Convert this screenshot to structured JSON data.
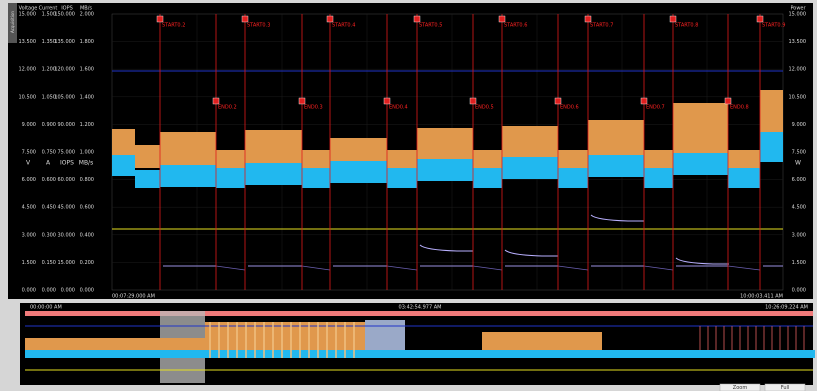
{
  "window_tab": "Acquisition",
  "header": {
    "columns": [
      "Voltage",
      "Current",
      "IOPS",
      "MB/s"
    ],
    "right": "Power"
  },
  "left_axis_rows": [
    [
      "15.000",
      "1.500",
      "150.000",
      "2.000"
    ],
    [
      "13.500",
      "1.350",
      "135.000",
      "1.800"
    ],
    [
      "12.000",
      "1.200",
      "120.000",
      "1.600"
    ],
    [
      "10.500",
      "1.050",
      "105.000",
      "1.400"
    ],
    [
      "9.000",
      "0.900",
      "90.000",
      "1.200"
    ],
    [
      "7.500",
      "0.750",
      "75.000",
      "1.000"
    ],
    [
      "6.000",
      "0.600",
      "60.000",
      "0.800"
    ],
    [
      "4.500",
      "0.450",
      "45.000",
      "0.600"
    ],
    [
      "3.000",
      "0.300",
      "30.000",
      "0.400"
    ],
    [
      "1.500",
      "0.150",
      "15.000",
      "0.200"
    ],
    [
      "0.000",
      "0.000",
      "0.000",
      "0.000"
    ]
  ],
  "units": [
    "V",
    "A",
    "IOPS",
    "MB/s"
  ],
  "right_unit": "W",
  "right_axis": [
    "15.000",
    "13.500",
    "12.000",
    "10.500",
    "9.000",
    "7.500",
    "6.000",
    "4.500",
    "3.000",
    "1.500",
    "0.000"
  ],
  "markers": {
    "start": [
      "START0.2",
      "START0.3",
      "START0.4",
      "START0.5",
      "START0.6",
      "START0.7",
      "START0.8",
      "START0.9"
    ],
    "end": [
      "END0.2",
      "END0.3",
      "END0.4",
      "END0.5",
      "END0.6",
      "END0.7",
      "END0.8"
    ]
  },
  "time": {
    "start": "00:07:29.000 AM",
    "end": "10:00:03.411 AM"
  },
  "overview": {
    "start": "00:00:00 AM",
    "center": "03:42:54.977 AM",
    "end": "10:26:09.224 AM"
  },
  "buttons": [
    "Zoom",
    "Full"
  ]
}
